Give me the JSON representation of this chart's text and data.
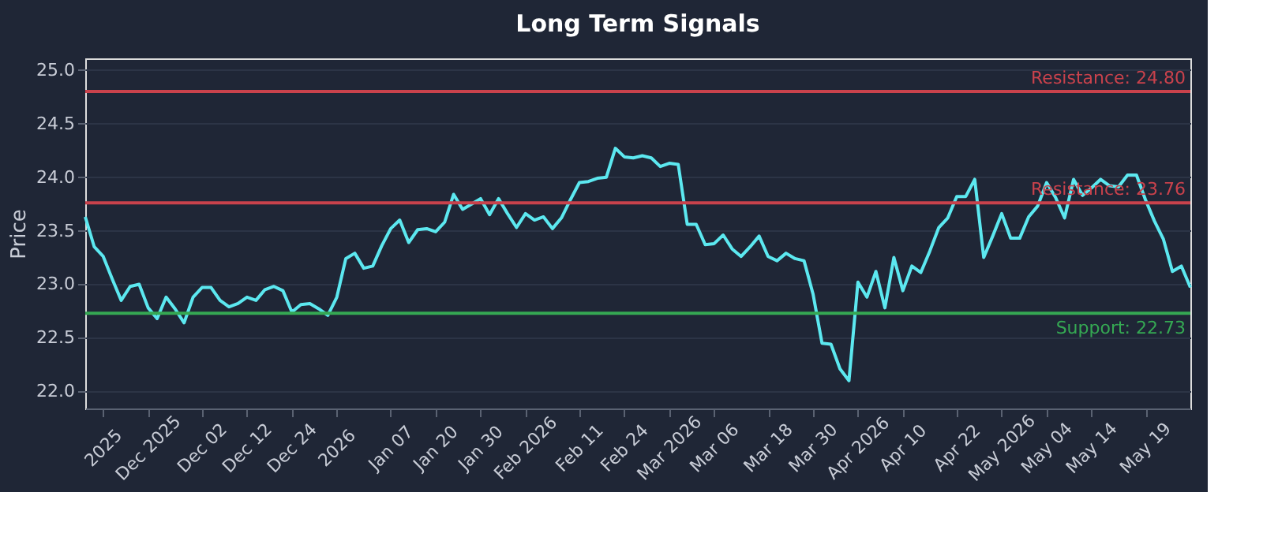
{
  "chart_data": {
    "type": "line",
    "title": "Long Term Signals",
    "categories": [
      null,
      null,
      "2025",
      null,
      null,
      null,
      null,
      "Dec 2025",
      null,
      null,
      null,
      null,
      null,
      "Dec 02",
      null,
      null,
      null,
      null,
      "Dec 12",
      null,
      null,
      null,
      null,
      "Dec 24",
      null,
      null,
      null,
      null,
      "2026",
      null,
      null,
      null,
      null,
      null,
      "Jan 07",
      null,
      null,
      null,
      null,
      "Jan 20",
      null,
      null,
      null,
      null,
      "Jan 30",
      null,
      null,
      null,
      null,
      "Feb 2026",
      null,
      null,
      null,
      null,
      null,
      "Feb 11",
      null,
      null,
      null,
      null,
      "Feb 24",
      null,
      null,
      null,
      null,
      "Mar 2026",
      null,
      null,
      null,
      null,
      "Mar 06",
      null,
      null,
      null,
      null,
      null,
      "Mar 18",
      null,
      null,
      null,
      null,
      "Mar 30",
      null,
      null,
      null,
      null,
      "Apr 2026",
      null,
      null,
      null,
      null,
      "Apr 10",
      null,
      null,
      null,
      null,
      null,
      "Apr 22",
      null,
      null,
      null,
      null,
      "May 2026",
      null,
      null,
      null,
      null,
      "May 04",
      null,
      null,
      null,
      null,
      "May 14",
      null,
      null,
      null,
      null,
      null,
      "May 19",
      null,
      null,
      null,
      null,
      null
    ],
    "series": [
      {
        "color": "#5ce8f0",
        "values": [
          23.63,
          23.35,
          23.26,
          23.05,
          22.85,
          22.98,
          23.0,
          22.78,
          22.68,
          22.88,
          22.77,
          22.64,
          22.88,
          22.97,
          22.97,
          22.85,
          22.79,
          22.82,
          22.88,
          22.85,
          22.95,
          22.98,
          22.94,
          22.74,
          22.81,
          22.82,
          22.77,
          22.71,
          22.88,
          23.24,
          23.29,
          23.15,
          23.17,
          23.36,
          23.52,
          23.6,
          23.39,
          23.51,
          23.52,
          23.49,
          23.58,
          23.84,
          23.7,
          23.75,
          23.8,
          23.65,
          23.8,
          23.66,
          23.53,
          23.66,
          23.6,
          23.63,
          23.52,
          23.62,
          23.79,
          23.95,
          23.96,
          23.99,
          24.0,
          24.27,
          24.19,
          24.18,
          24.2,
          24.18,
          24.1,
          24.13,
          24.12,
          23.56,
          23.56,
          23.37,
          23.38,
          23.46,
          23.33,
          23.26,
          23.35,
          23.45,
          23.26,
          23.22,
          23.29,
          23.24,
          23.22,
          22.91,
          22.45,
          22.44,
          22.21,
          22.1,
          23.02,
          22.88,
          23.12,
          22.78,
          23.25,
          22.94,
          23.17,
          23.11,
          23.31,
          23.53,
          23.62,
          23.82,
          23.82,
          23.98,
          23.25,
          23.45,
          23.66,
          23.43,
          23.43,
          23.63,
          23.73,
          23.95,
          23.81,
          23.62,
          23.98,
          23.83,
          23.9,
          23.98,
          23.92,
          23.91,
          24.02,
          24.02,
          23.79,
          23.59,
          23.42,
          23.12,
          23.17,
          22.97
        ]
      }
    ],
    "ylabel": "Price",
    "ylim": [
      21.84,
      25.11
    ],
    "yticks": [
      {
        "value": 22,
        "label": "22.0"
      },
      {
        "value": 22.5,
        "label": "22.5"
      },
      {
        "value": 23,
        "label": "23.0"
      },
      {
        "value": 23.5,
        "label": "23.5"
      },
      {
        "value": 24,
        "label": "24.0"
      },
      {
        "value": 24.5,
        "label": "24.5"
      },
      {
        "value": 25,
        "label": "25.0"
      }
    ],
    "grid": "y",
    "ref_lines": [
      {
        "axis": "y",
        "value": 24.8,
        "label": "Resistance: 24.80",
        "color": "#c9424c"
      },
      {
        "axis": "y",
        "value": 23.76,
        "label": "Resistance: 23.76",
        "color": "#c9424c"
      },
      {
        "axis": "y",
        "value": 22.73,
        "label": "Support: 22.73",
        "color": "#35a853"
      }
    ]
  }
}
